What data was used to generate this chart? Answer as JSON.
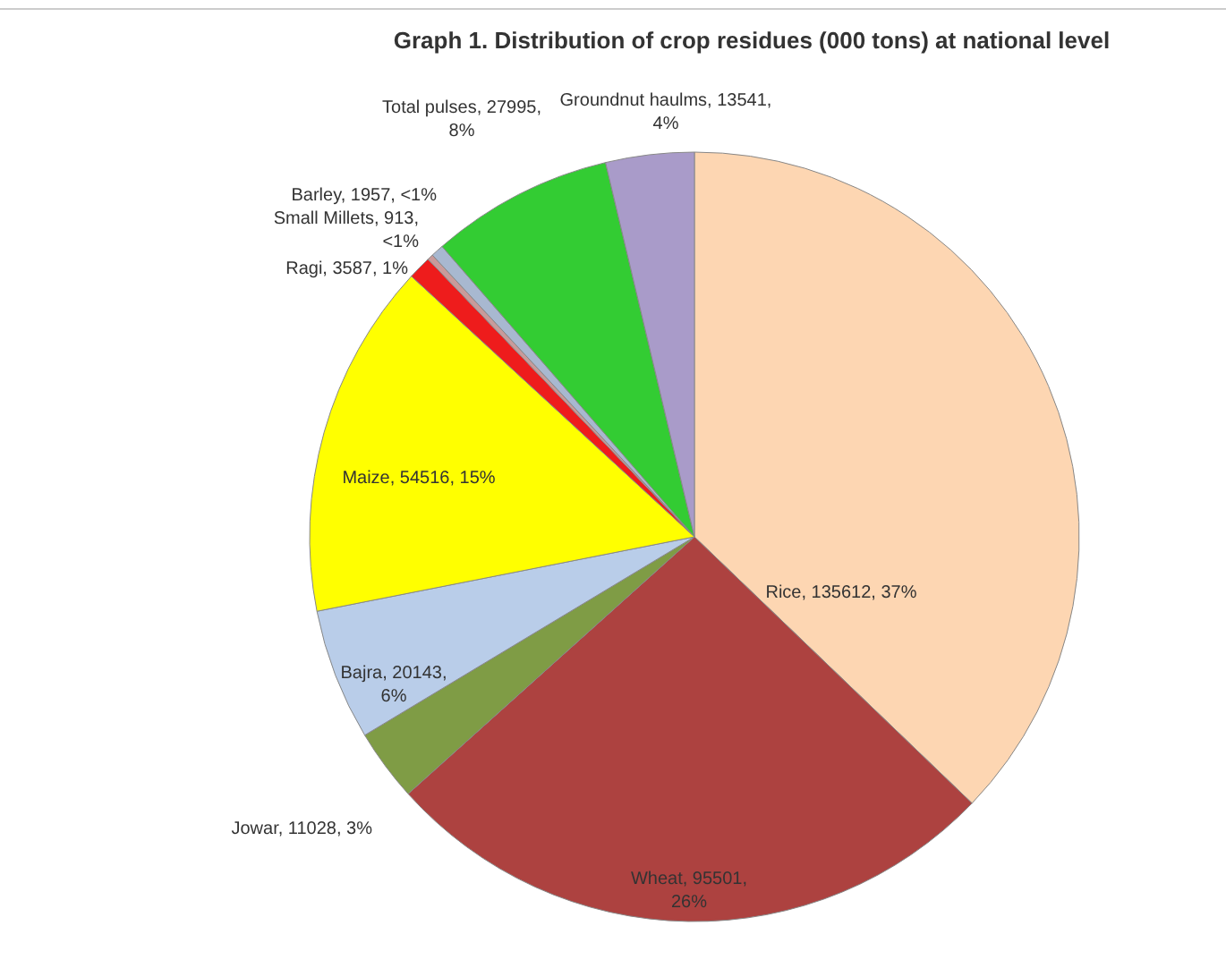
{
  "chart_data": {
    "type": "pie",
    "title": "Graph 1. Distribution of crop residues (000 tons) at national level",
    "categories": [
      "Rice",
      "Wheat ",
      "Jowar",
      "Bajra ",
      "Maize",
      "Ragi",
      "Small Millets ",
      "Barley",
      "Total pulses",
      "Groundnut haulms"
    ],
    "values": [
      135612,
      95501,
      11028,
      20143,
      54516,
      3587,
      913,
      1957,
      27995,
      13541
    ],
    "value_labels": [
      "135612, 37%",
      "95501, 26%",
      "11028, 3%",
      "20143, 6%",
      "54516, 15%",
      "3587, 1%",
      "913, <1%",
      "1957, <1%",
      "27995, 8%",
      "13541, 4%"
    ],
    "colors": [
      "#fdd6b2",
      "#ad4240",
      "#7f9c45",
      "#b9cde9",
      "#ffff00",
      "#ee1c1c",
      "#c99a9a",
      "#a8b8d0",
      "#33cc33",
      "#a99bc9"
    ]
  }
}
